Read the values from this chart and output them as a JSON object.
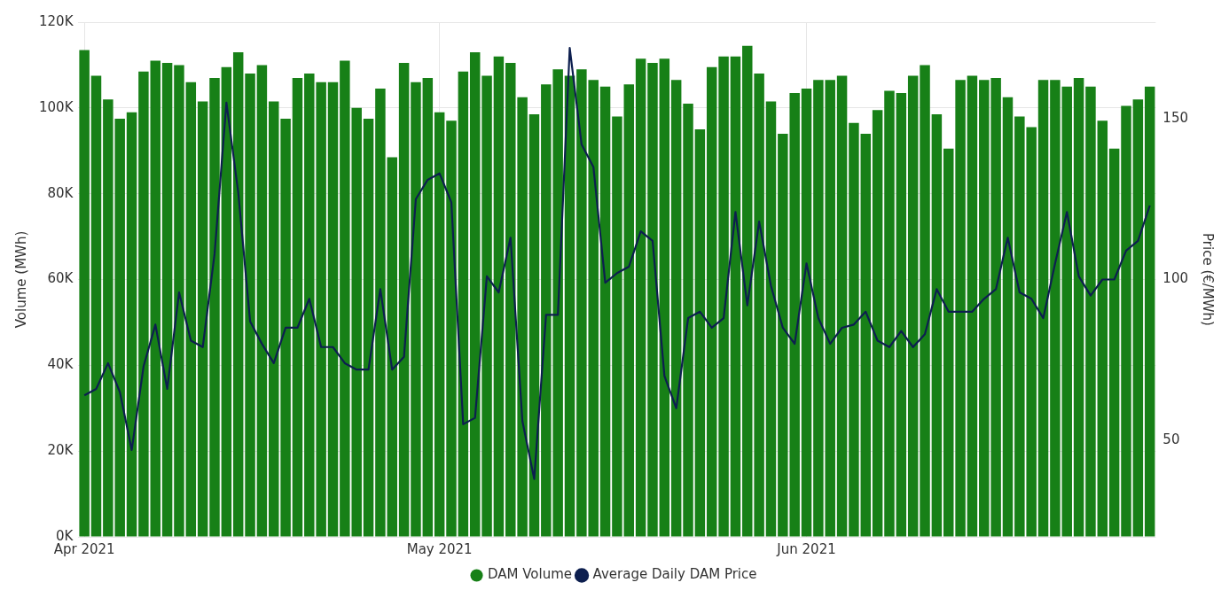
{
  "chart_data": {
    "type": "bar",
    "ylabel": "Volume (MWh)",
    "y2label": "Price (€/MWh)",
    "legend": "bottom",
    "grid": true,
    "marker": "none",
    "categories": [
      "Apr 2021",
      null,
      null,
      null,
      null,
      null,
      null,
      null,
      null,
      null,
      null,
      null,
      null,
      null,
      null,
      null,
      null,
      null,
      null,
      null,
      null,
      null,
      null,
      null,
      null,
      null,
      null,
      null,
      null,
      null,
      "May 2021",
      null,
      null,
      null,
      null,
      null,
      null,
      null,
      null,
      null,
      null,
      null,
      null,
      null,
      null,
      null,
      null,
      null,
      null,
      null,
      null,
      null,
      null,
      null,
      null,
      null,
      null,
      null,
      null,
      null,
      null,
      "Jun 2021",
      null,
      null,
      null,
      null,
      null,
      null,
      null,
      null,
      null,
      null,
      null,
      null,
      null,
      null,
      null,
      null,
      null,
      null,
      null,
      null,
      null,
      null,
      null,
      null,
      null,
      null,
      null,
      null,
      null
    ],
    "series": [
      {
        "name": "DAM Volume",
        "color": "#178017",
        "values": [
          113500,
          107500,
          102000,
          97500,
          99000,
          108500,
          111000,
          110500,
          110000,
          106000,
          101500,
          107000,
          109500,
          113000,
          108000,
          110000,
          101500,
          97500,
          107000,
          108000,
          106000,
          106000,
          111000,
          100000,
          97500,
          104500,
          88500,
          110500,
          106000,
          107000,
          99000,
          97000,
          108500,
          113000,
          107500,
          112000,
          110500,
          102500,
          98500,
          105500,
          109000,
          107500,
          109000,
          106500,
          105000,
          98000,
          105500,
          111500,
          110500,
          111500,
          106500,
          101000,
          95000,
          109500,
          112000,
          112000,
          114500,
          108000,
          101500,
          94000,
          103500,
          104500,
          106500,
          106500,
          107500,
          96500,
          94000,
          99500,
          104000,
          103500,
          107500,
          110000,
          98500,
          90500,
          106500,
          107500,
          106500,
          107000,
          102500,
          98000,
          95500,
          106500,
          106500,
          105000,
          107000,
          105000,
          97000,
          90500,
          100500,
          102000,
          105000
        ]
      },
      {
        "name": "Average Daily DAM Price",
        "type": "line",
        "axis": "y2",
        "color": "#0d1f4f",
        "values": [
          64,
          66,
          74,
          65,
          47,
          73,
          86,
          66,
          96,
          81,
          79,
          108,
          155,
          127,
          87,
          80,
          74,
          85,
          85,
          94,
          79,
          79,
          74,
          72,
          72,
          97,
          72,
          76,
          125,
          131,
          133,
          124,
          55,
          57,
          101,
          96,
          113,
          56,
          38,
          89,
          89,
          172,
          142,
          135,
          99,
          102,
          104,
          115,
          112,
          70,
          60,
          88,
          90,
          85,
          88,
          121,
          92,
          118,
          98,
          85,
          80,
          105,
          88,
          80,
          85,
          86,
          90,
          81,
          79,
          84,
          79,
          83,
          97,
          90,
          90,
          90,
          94,
          97,
          113,
          96,
          94,
          88,
          105,
          121,
          101,
          95,
          100,
          100,
          109,
          112,
          123
        ]
      }
    ],
    "ylim": [
      0,
      120000
    ],
    "yticks": [
      {
        "value": 0,
        "label": "0K"
      },
      {
        "value": 20000,
        "label": "20K"
      },
      {
        "value": 40000,
        "label": "40K"
      },
      {
        "value": 60000,
        "label": "60K"
      },
      {
        "value": 80000,
        "label": "80K"
      },
      {
        "value": 100000,
        "label": "100K"
      },
      {
        "value": 120000,
        "label": "120K"
      }
    ],
    "y2lim": [
      20,
      180
    ],
    "y2ticks": [
      50,
      100,
      150
    ]
  }
}
